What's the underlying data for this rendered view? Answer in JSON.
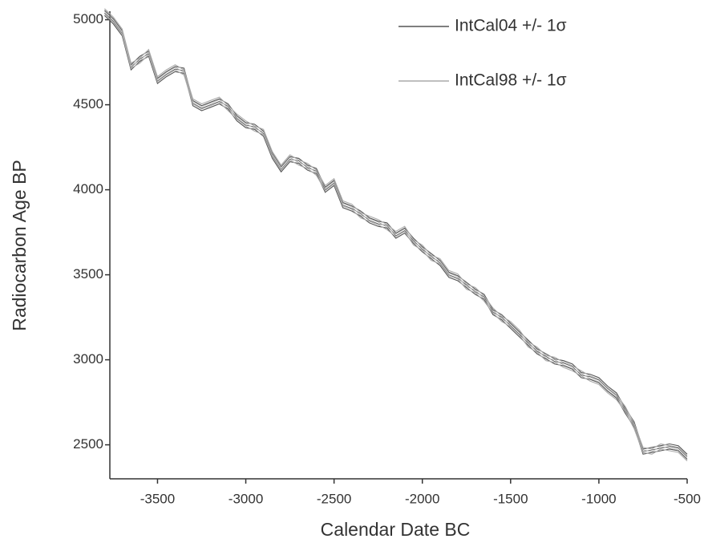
{
  "chart_data": {
    "type": "line",
    "xlabel": "Calendar Date BC",
    "ylabel": "Radiocarbon Age BP",
    "x": [
      -3800,
      -3750,
      -3700,
      -3650,
      -3600,
      -3550,
      -3500,
      -3450,
      -3400,
      -3350,
      -3300,
      -3250,
      -3200,
      -3150,
      -3100,
      -3050,
      -3000,
      -2950,
      -2900,
      -2850,
      -2800,
      -2750,
      -2700,
      -2650,
      -2600,
      -2550,
      -2500,
      -2450,
      -2400,
      -2350,
      -2300,
      -2250,
      -2200,
      -2150,
      -2100,
      -2050,
      -2000,
      -1950,
      -1900,
      -1850,
      -1800,
      -1750,
      -1700,
      -1650,
      -1600,
      -1550,
      -1500,
      -1450,
      -1400,
      -1350,
      -1300,
      -1250,
      -1200,
      -1150,
      -1100,
      -1050,
      -1000,
      -950,
      -900,
      -850,
      -800,
      -750,
      -700,
      -650,
      -600,
      -550,
      -500
    ],
    "series": [
      {
        "name": "IntCal04 +/- 1σ",
        "color": "#555555",
        "error": 15,
        "values": [
          5040,
          4990,
          4920,
          4720,
          4770,
          4800,
          4640,
          4680,
          4710,
          4700,
          4510,
          4480,
          4500,
          4520,
          4490,
          4420,
          4380,
          4370,
          4330,
          4200,
          4120,
          4180,
          4170,
          4130,
          4110,
          4000,
          4040,
          3910,
          3890,
          3860,
          3820,
          3800,
          3790,
          3730,
          3760,
          3700,
          3650,
          3610,
          3570,
          3500,
          3480,
          3440,
          3400,
          3370,
          3280,
          3250,
          3200,
          3150,
          3100,
          3050,
          3020,
          2990,
          2980,
          2960,
          2910,
          2900,
          2880,
          2830,
          2790,
          2700,
          2620,
          2460,
          2470,
          2480,
          2490,
          2480,
          2430
        ]
      },
      {
        "name": "IntCal98 +/- 1σ",
        "color": "#aaaaaa",
        "error": 15,
        "values": [
          5050,
          5000,
          4930,
          4730,
          4760,
          4810,
          4650,
          4690,
          4720,
          4690,
          4520,
          4490,
          4510,
          4530,
          4480,
          4430,
          4390,
          4360,
          4340,
          4210,
          4130,
          4190,
          4160,
          4140,
          4100,
          4010,
          4050,
          3920,
          3900,
          3850,
          3830,
          3810,
          3780,
          3740,
          3770,
          3690,
          3660,
          3600,
          3580,
          3510,
          3490,
          3430,
          3410,
          3360,
          3290,
          3240,
          3210,
          3160,
          3090,
          3060,
          3010,
          3000,
          2970,
          2950,
          2920,
          2890,
          2870,
          2820,
          2780,
          2710,
          2610,
          2470,
          2460,
          2490,
          2480,
          2470,
          2420
        ]
      }
    ],
    "xlim": [
      -3770,
      -500
    ],
    "ylim": [
      2300,
      5050
    ],
    "xticks": [
      -3500,
      -3000,
      -2500,
      -2000,
      -1500,
      -1000,
      -500
    ],
    "yticks": [
      2500,
      3000,
      3500,
      4000,
      4500,
      5000
    ],
    "legend": "upper-right"
  }
}
